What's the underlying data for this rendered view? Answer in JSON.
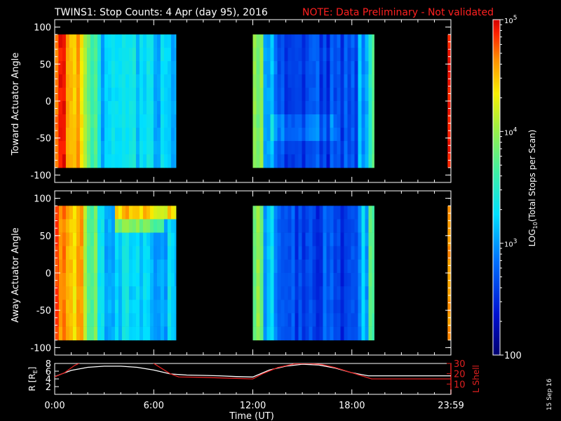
{
  "header": {
    "title": "TWINS1: Stop Counts:  4 Apr (day  95), 2016",
    "note": "NOTE: Data Preliminary - Not validated"
  },
  "colors": {
    "background": "#000000",
    "axis": "#ffffff",
    "note": "#ff2020",
    "lshell": "#e02020",
    "radius": "#ffffff"
  },
  "side_stamp": "15 Sep 16",
  "chart_data": [
    {
      "type": "heatmap",
      "name": "toward-panel",
      "ylabel": "Toward Actuator Angle",
      "ylim": [
        -110,
        110
      ],
      "yticks": [
        100,
        50,
        0,
        -50,
        -100
      ],
      "xlim_hours": [
        0,
        24
      ],
      "data_angle_range": [
        -90,
        90
      ],
      "segments": [
        {
          "start_h": 0.0,
          "end_h": 0.25,
          "profile": "edge"
        },
        {
          "start_h": 0.25,
          "end_h": 7.35,
          "profile": "morning"
        },
        {
          "start_h": 12.0,
          "end_h": 19.35,
          "profile": "afternoon"
        },
        {
          "start_h": 23.8,
          "end_h": 24.0,
          "profile": "edge"
        }
      ]
    },
    {
      "type": "heatmap",
      "name": "away-panel",
      "ylabel": "Away Actuator Angle",
      "ylim": [
        -110,
        110
      ],
      "yticks": [
        100,
        50,
        0,
        -50,
        -100
      ],
      "xlim_hours": [
        0,
        24
      ],
      "data_angle_range": [
        -90,
        90
      ],
      "segments": [
        {
          "start_h": 0.0,
          "end_h": 0.25,
          "profile": "edge"
        },
        {
          "start_h": 0.25,
          "end_h": 7.35,
          "profile": "morning"
        },
        {
          "start_h": 12.0,
          "end_h": 19.35,
          "profile": "afternoon"
        },
        {
          "start_h": 23.8,
          "end_h": 24.0,
          "profile": "edge"
        }
      ]
    },
    {
      "type": "line",
      "name": "orbit-panel",
      "ylabel": "R [R",
      "ylabel_sub": "E",
      "ylabel_end": "]",
      "ylabel_right": "L Shell",
      "ylim": [
        0,
        8
      ],
      "yticks": [
        2,
        4,
        6,
        8
      ],
      "ylim_right": [
        0,
        30
      ],
      "yticks_right": [
        10,
        20,
        30
      ],
      "xlabel": "Time (UT)",
      "xtick_labels": [
        "0:00",
        "6:00",
        "12:00",
        "18:00",
        "23:59"
      ],
      "xtick_hours": [
        0,
        6,
        12,
        18,
        24
      ],
      "series": [
        {
          "name": "R",
          "axis": "left",
          "color": "#ffffff",
          "x": [
            0,
            1,
            2,
            3,
            4,
            5,
            6,
            7,
            8,
            9,
            10,
            11,
            12,
            13,
            14,
            15,
            16,
            17,
            18,
            19,
            20,
            21,
            22,
            23,
            24
          ],
          "y": [
            4.6,
            6.2,
            7.0,
            7.3,
            7.3,
            7.0,
            6.3,
            5.3,
            5.0,
            4.9,
            4.8,
            4.6,
            4.5,
            6.3,
            7.3,
            7.8,
            7.6,
            6.8,
            5.6,
            4.8,
            4.8,
            4.8,
            4.8,
            4.8,
            4.8
          ]
        },
        {
          "name": "L Shell",
          "axis": "right",
          "color": "#e02020",
          "x": [
            0,
            0.6,
            1.2,
            1.6,
            5.9,
            6.4,
            7.0,
            7.5,
            9,
            11,
            12,
            12.6,
            13.5,
            14.5,
            15.3,
            16.2,
            17.0,
            17.8,
            18.6,
            19.2,
            20,
            22,
            24
          ],
          "y": [
            17,
            21,
            28,
            31,
            31,
            26,
            20,
            17,
            16.5,
            15.5,
            15,
            20,
            26,
            29.5,
            30,
            29,
            26,
            22,
            18,
            15,
            15,
            15,
            15
          ]
        }
      ]
    },
    {
      "type": "heatmap",
      "name": "colorbar",
      "title": "LOG",
      "title_sub": "10",
      "title_end": "(Total Stops per Scan)",
      "scale": "log",
      "range": [
        100,
        100000
      ],
      "tick_labels": [
        {
          "base": "10",
          "exp": "5",
          "value": 100000
        },
        {
          "base": "10",
          "exp": "4",
          "value": 10000
        },
        {
          "base": "10",
          "exp": "3",
          "value": 1000
        },
        {
          "base": "100",
          "exp": "",
          "value": 100
        }
      ]
    }
  ]
}
